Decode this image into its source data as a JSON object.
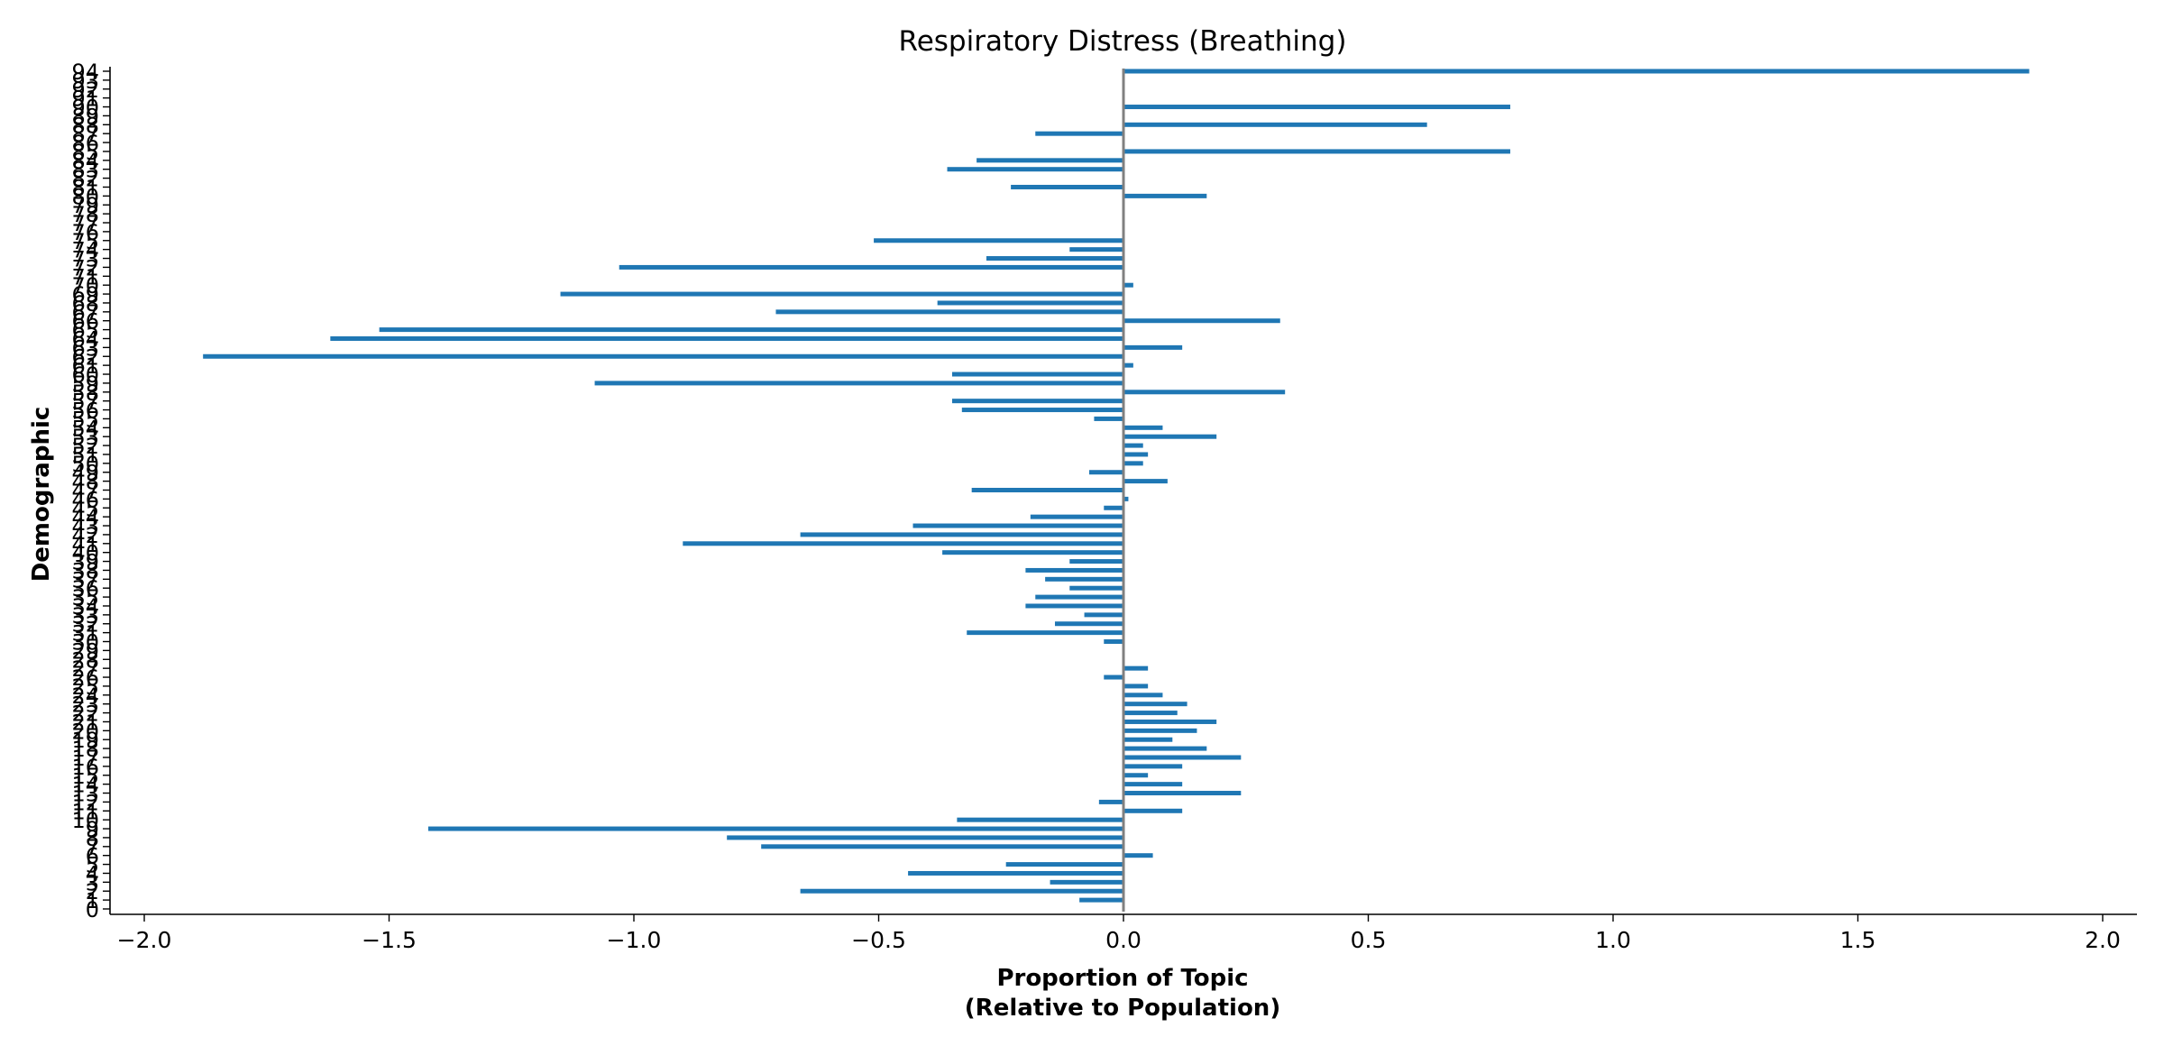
{
  "chart_data": {
    "type": "bar",
    "orientation": "horizontal",
    "title": "Respiratory Distress (Breathing)",
    "xlabel_lines": [
      "Proportion of Topic",
      "(Relative to Population)"
    ],
    "ylabel": "Demographic",
    "xlim": [
      -2.07,
      2.07
    ],
    "xticks": [
      -2.0,
      -1.5,
      -1.0,
      -0.5,
      0.0,
      0.5,
      1.0,
      1.5,
      2.0
    ],
    "xtick_labels": [
      "−2.0",
      "−1.5",
      "−1.0",
      "−0.5",
      "0.0",
      "0.5",
      "1.0",
      "1.5",
      "2.0"
    ],
    "category_range": [
      0,
      94
    ],
    "categories": [
      1,
      2,
      3,
      4,
      5,
      6,
      7,
      8,
      9,
      10,
      11,
      12,
      13,
      14,
      15,
      16,
      17,
      18,
      19,
      20,
      21,
      22,
      23,
      24,
      25,
      26,
      27,
      28,
      29,
      30,
      31,
      32,
      33,
      34,
      35,
      36,
      37,
      38,
      39,
      40,
      41,
      42,
      43,
      44,
      45,
      46,
      47,
      48,
      49,
      50,
      51,
      52,
      53,
      54,
      55,
      56,
      57,
      58,
      59,
      60,
      61,
      62,
      63,
      64,
      65,
      66,
      67,
      68,
      69,
      70,
      71,
      72,
      73,
      74,
      75,
      76,
      77,
      78,
      79,
      80,
      81,
      82,
      83,
      84,
      85,
      86,
      87,
      88,
      89,
      90,
      91,
      92,
      93,
      94
    ],
    "values": [
      -0.09,
      -0.66,
      -0.15,
      -0.44,
      -0.24,
      0.06,
      -0.74,
      -0.81,
      -1.42,
      -0.34,
      0.12,
      -0.05,
      0.24,
      0.12,
      0.05,
      0.12,
      0.24,
      0.17,
      0.1,
      0.15,
      0.19,
      0.11,
      0.13,
      0.08,
      0.05,
      -0.04,
      0.05,
      0.0,
      0.0,
      -0.04,
      -0.32,
      -0.14,
      -0.08,
      -0.2,
      -0.18,
      -0.11,
      -0.16,
      -0.2,
      -0.11,
      -0.37,
      -0.9,
      -0.66,
      -0.43,
      -0.19,
      -0.04,
      0.01,
      -0.31,
      0.09,
      -0.07,
      0.04,
      0.05,
      0.04,
      0.19,
      0.08,
      -0.06,
      -0.33,
      -0.35,
      0.33,
      -1.08,
      -0.35,
      0.02,
      -1.88,
      0.12,
      -1.62,
      -1.52,
      0.32,
      -0.71,
      -0.38,
      -1.15,
      0.02,
      0.0,
      -1.03,
      -0.28,
      -0.11,
      -0.51,
      0.0,
      0.0,
      0.0,
      0.0,
      0.17,
      -0.23,
      -0.0,
      -0.36,
      -0.3,
      0.79,
      0.0,
      -0.18,
      0.62,
      0.0,
      0.79,
      0.0,
      0.0,
      0.0,
      1.85
    ],
    "bar_color": "#1f77b4",
    "zero_line_color": "#808080",
    "grid": false
  }
}
